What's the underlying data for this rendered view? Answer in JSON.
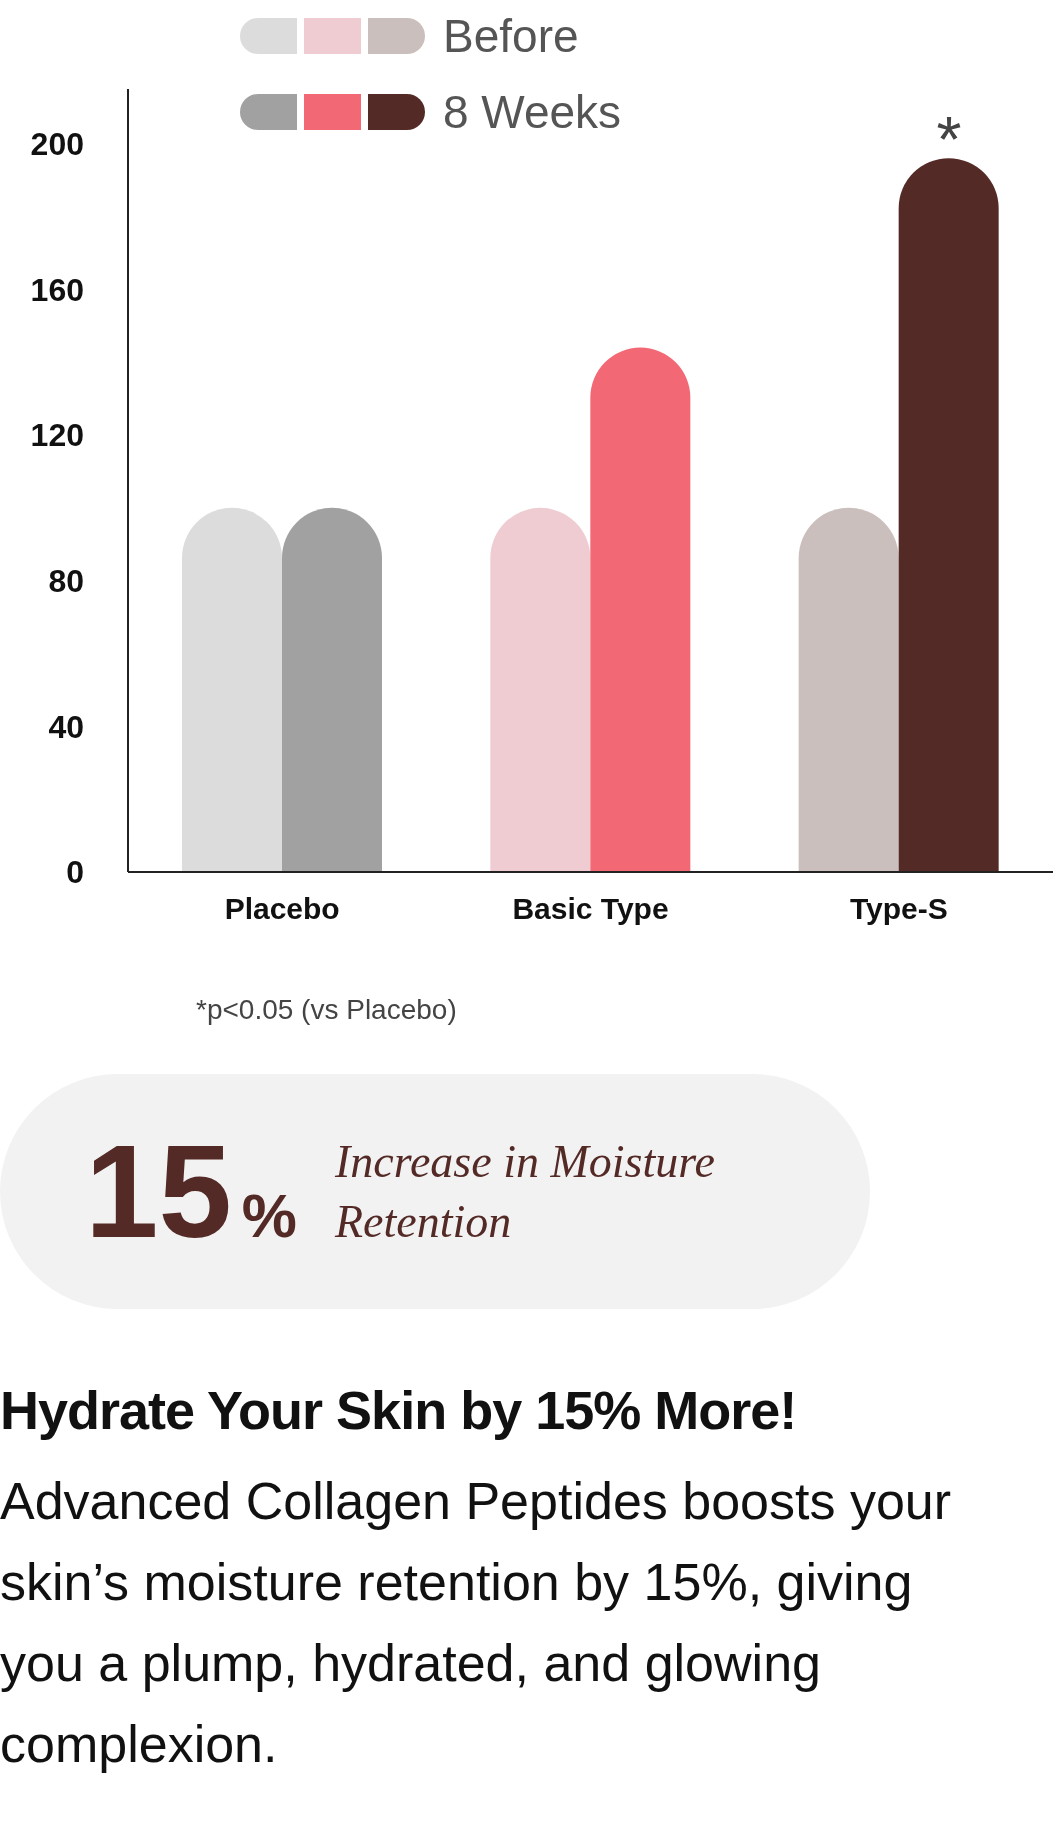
{
  "chart_data": {
    "type": "bar",
    "categories": [
      "Placebo",
      "Basic Type",
      "Type-S"
    ],
    "series": [
      {
        "name": "Before",
        "colors": [
          "#dcdcdc",
          "#efcbd2",
          "#cbbfbd"
        ],
        "values": [
          100,
          100,
          100
        ]
      },
      {
        "name": "8 Weeks",
        "colors": [
          "#a1a1a1",
          "#f26874",
          "#532a26"
        ],
        "values": [
          100,
          144,
          196
        ]
      }
    ],
    "ylim": [
      0,
      215
    ],
    "yticks": [
      0,
      40,
      80,
      120,
      160,
      200
    ],
    "legend": "top",
    "grid": false,
    "annotations": [
      "*",
      "*p<0.05 (vs Placebo)",
      "15%",
      "Increase in Moisture Retention",
      "Hydrate Your Skin by 15% More!",
      "Advanced Collagen Peptides boosts your skin’s moisture retention by 15%, giving you a plump, hydrated, and glowing complexion."
    ]
  }
}
